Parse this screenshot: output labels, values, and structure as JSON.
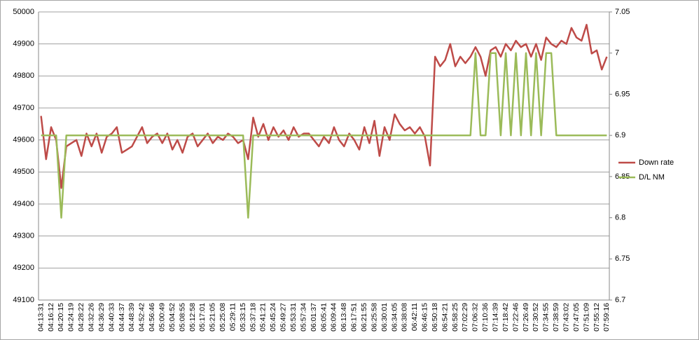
{
  "chart_data": {
    "type": "line",
    "categories": [
      "04:13:31",
      null,
      "04:16:12",
      null,
      "04:20:15",
      null,
      "04:24:19",
      null,
      "04:28:22",
      null,
      "04:32:26",
      null,
      "04:36:29",
      null,
      "04:40:33",
      null,
      "04:44:37",
      null,
      "04:48:39",
      null,
      "04:52:42",
      null,
      "04:56:46",
      null,
      "05:00:49",
      null,
      "05:04:52",
      null,
      "05:08:55",
      null,
      "05:12:58",
      null,
      "05:17:01",
      null,
      "05:21:05",
      null,
      "05:25:08",
      null,
      "05:29:11",
      null,
      "05:33:15",
      null,
      "05:37:18",
      null,
      "05:41:21",
      null,
      "05:45:24",
      null,
      "05:49:27",
      null,
      "05:53:31",
      null,
      "05:57:34",
      null,
      "06:01:37",
      null,
      "06:05:41",
      null,
      "06:09:44",
      null,
      "06:13:48",
      null,
      "06:17:51",
      null,
      "06:21:55",
      null,
      "06:25:58",
      null,
      "06:30:01",
      null,
      "06:34:05",
      null,
      "06:38:08",
      null,
      "06:42:11",
      null,
      "06:46:15",
      null,
      "06:50:18",
      null,
      "06:54:21",
      null,
      "06:58:25",
      null,
      "07:02:29",
      null,
      "07:06:32",
      null,
      "07:10:36",
      null,
      "07:14:39",
      null,
      "07:18:42",
      null,
      "07:22:46",
      null,
      "07:26:49",
      null,
      "07:30:52",
      null,
      "07:34:55",
      null,
      "07:38:59",
      null,
      "07:43:02",
      null,
      "07:47:05",
      null,
      "07:51:09",
      null,
      "07:55:12",
      null,
      "07:59:16"
    ],
    "series": [
      {
        "name": "Down rate",
        "color": "#be4b48",
        "values": [
          49675,
          49540,
          49640,
          49600,
          49450,
          49580,
          49590,
          49600,
          49550,
          49620,
          49580,
          49620,
          49560,
          49610,
          49620,
          49640,
          49560,
          49570,
          49580,
          49610,
          49640,
          49590,
          49610,
          49620,
          49590,
          49620,
          49570,
          49600,
          49560,
          49610,
          49620,
          49580,
          49600,
          49620,
          49590,
          49610,
          49600,
          49620,
          49610,
          49590,
          49600,
          49540,
          49670,
          49610,
          49650,
          49600,
          49640,
          49610,
          49630,
          49600,
          49640,
          49610,
          49620,
          49620,
          49600,
          49580,
          49610,
          49590,
          49640,
          49600,
          49580,
          49620,
          49600,
          49570,
          49640,
          49590,
          49660,
          49550,
          49640,
          49600,
          49680,
          49650,
          49630,
          49640,
          49620,
          49640,
          49610,
          49520,
          49860,
          49830,
          49850,
          49900,
          49830,
          49860,
          49840,
          49860,
          49890,
          49860,
          49800,
          49880,
          49890,
          49860,
          49900,
          49880,
          49910,
          49890,
          49900,
          49860,
          49900,
          49850,
          49920,
          49900,
          49890,
          49910,
          49900,
          49950,
          49920,
          49910,
          49960,
          49870,
          49880,
          49820,
          49860
        ]
      },
      {
        "name": "D/L NM",
        "color": "#9bbb59",
        "axis": "y2",
        "values": [
          6.9,
          6.9,
          6.9,
          6.9,
          6.8,
          6.9,
          6.9,
          6.9,
          6.9,
          6.9,
          6.9,
          6.9,
          6.9,
          6.9,
          6.9,
          6.9,
          6.9,
          6.9,
          6.9,
          6.9,
          6.9,
          6.9,
          6.9,
          6.9,
          6.9,
          6.9,
          6.9,
          6.9,
          6.9,
          6.9,
          6.9,
          6.9,
          6.9,
          6.9,
          6.9,
          6.9,
          6.9,
          6.9,
          6.9,
          6.9,
          6.9,
          6.8,
          6.9,
          6.9,
          6.9,
          6.9,
          6.9,
          6.9,
          6.9,
          6.9,
          6.9,
          6.9,
          6.9,
          6.9,
          6.9,
          6.9,
          6.9,
          6.9,
          6.9,
          6.9,
          6.9,
          6.9,
          6.9,
          6.9,
          6.9,
          6.9,
          6.9,
          6.9,
          6.9,
          6.9,
          6.9,
          6.9,
          6.9,
          6.9,
          6.9,
          6.9,
          6.9,
          6.9,
          6.9,
          6.9,
          6.9,
          6.9,
          6.9,
          6.9,
          6.9,
          6.9,
          7,
          6.9,
          6.9,
          7,
          7,
          6.9,
          7,
          6.9,
          7,
          6.9,
          7,
          6.9,
          7,
          6.9,
          7,
          7,
          6.9,
          6.9,
          6.9,
          6.9,
          6.9,
          6.9,
          6.9,
          6.9,
          6.9,
          6.9,
          6.9
        ]
      }
    ],
    "ylim": [
      49100,
      50000
    ],
    "yticks": [
      49100,
      49200,
      49300,
      49400,
      49500,
      49600,
      49700,
      49800,
      49900,
      50000
    ],
    "y2lim": [
      6.7,
      7.05
    ],
    "y2ticks": [
      6.7,
      6.75,
      6.8,
      6.85,
      6.9,
      6.95,
      7,
      7.05
    ],
    "grid": true,
    "legend": "right"
  }
}
